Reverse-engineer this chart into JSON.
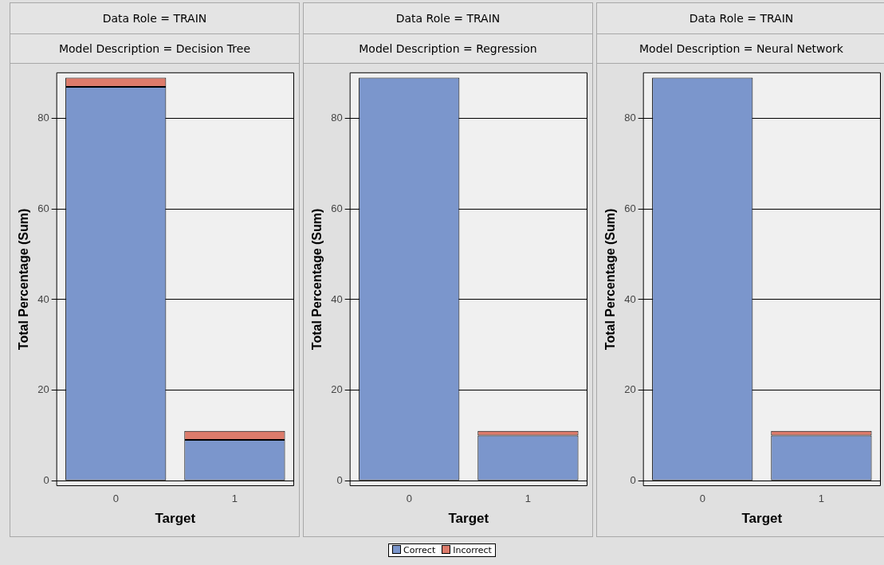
{
  "chart_data": [
    {
      "type": "bar",
      "title": "Data Role = TRAIN",
      "subtitle": "Model Description = Decision Tree",
      "xlabel": "Target",
      "ylabel": "Total Percentage (Sum)",
      "categories": [
        "0",
        "1"
      ],
      "stacked": true,
      "series": [
        {
          "name": "Correct",
          "color": "#7b96cc",
          "values": [
            87,
            9
          ]
        },
        {
          "name": "Incorrect",
          "color": "#dd7b6b",
          "values": [
            2,
            2
          ]
        }
      ],
      "ylim": [
        -1.2,
        90.2
      ],
      "yticks": [
        0,
        20,
        40,
        60,
        80
      ],
      "grid": "y",
      "legend": "bottom"
    },
    {
      "type": "bar",
      "title": "Data Role = TRAIN",
      "subtitle": "Model Description = Regression",
      "xlabel": "Target",
      "ylabel": "Total Percentage (Sum)",
      "categories": [
        "0",
        "1"
      ],
      "stacked": true,
      "series": [
        {
          "name": "Correct",
          "color": "#7b96cc",
          "values": [
            89,
            10
          ]
        },
        {
          "name": "Incorrect",
          "color": "#dd7b6b",
          "values": [
            0,
            1
          ]
        }
      ],
      "ylim": [
        -1.2,
        90.2
      ],
      "yticks": [
        0,
        20,
        40,
        60,
        80
      ],
      "grid": "y",
      "legend": "bottom"
    },
    {
      "type": "bar",
      "title": "Data Role = TRAIN",
      "subtitle": "Model Description = Neural Network",
      "xlabel": "Target",
      "ylabel": "Total Percentage (Sum)",
      "categories": [
        "0",
        "1"
      ],
      "stacked": true,
      "series": [
        {
          "name": "Correct",
          "color": "#7b96cc",
          "values": [
            89,
            10
          ]
        },
        {
          "name": "Incorrect",
          "color": "#dd7b6b",
          "values": [
            0,
            1
          ]
        }
      ],
      "ylim": [
        -1.2,
        90.2
      ],
      "yticks": [
        0,
        20,
        40,
        60,
        80
      ],
      "grid": "y",
      "legend": "bottom"
    }
  ]
}
